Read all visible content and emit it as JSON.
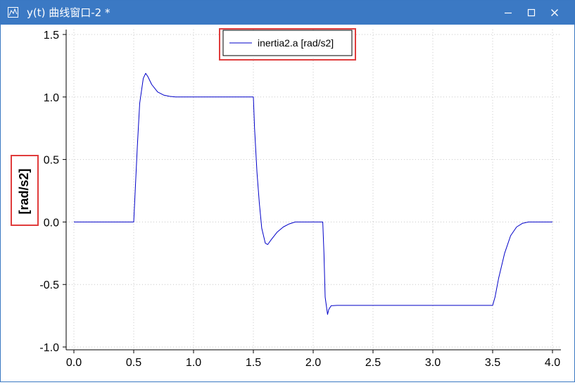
{
  "window": {
    "title": "y(t) 曲线窗口-2 *",
    "titlebar_color": "#3b79c4",
    "controls": [
      "minimize-icon",
      "maximize-icon",
      "close-icon"
    ]
  },
  "chart_data": {
    "type": "line",
    "ylabel": "[rad/s2]",
    "xlim": [
      0,
      4
    ],
    "ylim": [
      -1,
      1.5
    ],
    "xticks": [
      0.0,
      0.5,
      1.0,
      1.5,
      2.0,
      2.5,
      3.0,
      3.5,
      4.0
    ],
    "xtick_labels": [
      "0.0",
      "0.5",
      "1.0",
      "1.5",
      "2.0",
      "2.5",
      "3.0",
      "3.5",
      "4.0"
    ],
    "yticks": [
      1.5,
      1.0,
      0.5,
      0.0,
      -0.5,
      -1.0
    ],
    "ytick_labels": [
      "1.5",
      "1.0",
      "0.5",
      "0.0",
      "-0.5",
      "-1.0"
    ],
    "grid": true,
    "legend_position": "top-center",
    "series": [
      {
        "name": "inertia2.a [rad/s2]",
        "color": "#0000c8",
        "x": [
          0.0,
          0.5,
          0.51,
          0.53,
          0.55,
          0.58,
          0.6,
          0.62,
          0.65,
          0.7,
          0.75,
          0.8,
          0.85,
          0.9,
          1.0,
          1.2,
          1.5,
          1.51,
          1.53,
          1.55,
          1.57,
          1.6,
          1.62,
          1.65,
          1.7,
          1.75,
          1.8,
          1.85,
          1.9,
          2.0,
          2.08,
          2.09,
          2.1,
          2.12,
          2.13,
          2.15,
          2.2,
          2.5,
          3.0,
          3.5,
          3.52,
          3.55,
          3.6,
          3.65,
          3.7,
          3.75,
          3.8,
          3.9,
          4.0
        ],
        "values": [
          0.0,
          0.0,
          0.2,
          0.6,
          0.95,
          1.15,
          1.19,
          1.16,
          1.1,
          1.04,
          1.015,
          1.005,
          1.0,
          1.0,
          1.0,
          1.0,
          1.0,
          0.75,
          0.4,
          0.15,
          -0.05,
          -0.17,
          -0.18,
          -0.14,
          -0.08,
          -0.04,
          -0.015,
          0.0,
          0.0,
          0.0,
          0.0,
          -0.25,
          -0.6,
          -0.74,
          -0.7,
          -0.67,
          -0.667,
          -0.667,
          -0.667,
          -0.667,
          -0.6,
          -0.45,
          -0.25,
          -0.11,
          -0.04,
          -0.01,
          0.0,
          0.0,
          0.0
        ]
      }
    ]
  }
}
